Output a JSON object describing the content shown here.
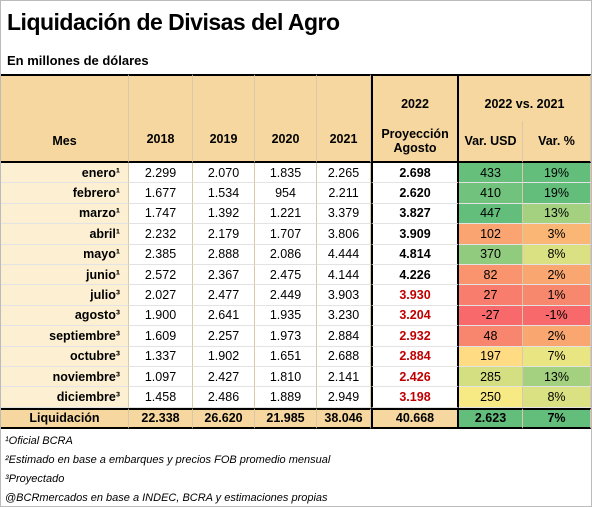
{
  "header": {
    "title": "Liquidación de Divisas del Agro",
    "subtitle": "En millones de dólares"
  },
  "table": {
    "columns": {
      "month": "Mes",
      "years": [
        "2018",
        "2019",
        "2020",
        "2021"
      ],
      "year_2022": "2022",
      "projection": "Proyección Agosto",
      "comparison": "2022 vs. 2021",
      "var_usd": "Var. USD",
      "var_pct": "Var. %"
    },
    "rows": [
      {
        "cells": [
          "enero¹",
          "2.299",
          "2.070",
          "1.835",
          "2.265",
          "2.698",
          "433",
          "19%"
        ],
        "projection_color": "#000000",
        "usd_color": "#66bf7b",
        "pct_color": "#63be7b"
      },
      {
        "cells": [
          "febrero¹",
          "1.677",
          "1.534",
          "954",
          "2.211",
          "2.620",
          "410",
          "19%"
        ],
        "projection_color": "#000000",
        "usd_color": "#70c27c",
        "pct_color": "#63be7b"
      },
      {
        "cells": [
          "marzo¹",
          "1.747",
          "1.392",
          "1.221",
          "3.379",
          "3.827",
          "447",
          "13%"
        ],
        "projection_color": "#000000",
        "usd_color": "#63be7b",
        "pct_color": "#a3d17f"
      },
      {
        "cells": [
          "abril¹",
          "2.232",
          "2.179",
          "1.707",
          "3.806",
          "3.909",
          "102",
          "3%"
        ],
        "projection_color": "#000000",
        "usd_color": "#f9a471",
        "pct_color": "#fab674"
      },
      {
        "cells": [
          "mayo¹",
          "2.385",
          "2.888",
          "2.086",
          "4.444",
          "4.814",
          "370",
          "8%"
        ],
        "projection_color": "#000000",
        "usd_color": "#91cb7e",
        "pct_color": "#dae182"
      },
      {
        "cells": [
          "junio¹",
          "2.572",
          "2.367",
          "2.475",
          "4.144",
          "4.226",
          "82",
          "2%"
        ],
        "projection_color": "#000000",
        "usd_color": "#f9946e",
        "pct_color": "#f9a670"
      },
      {
        "cells": [
          "julio³",
          "2.027",
          "2.477",
          "2.449",
          "3.903",
          "3.930",
          "27",
          "1%"
        ],
        "projection_color": "#c00000",
        "usd_color": "#f87d6c",
        "pct_color": "#f8886d"
      },
      {
        "cells": [
          "agosto³",
          "1.900",
          "2.641",
          "1.935",
          "3.230",
          "3.204",
          "-27",
          "-1%"
        ],
        "projection_color": "#c00000",
        "usd_color": "#f8696b",
        "pct_color": "#f8696b"
      },
      {
        "cells": [
          "septiembre³",
          "1.609",
          "2.257",
          "1.973",
          "2.884",
          "2.932",
          "48",
          "2%"
        ],
        "projection_color": "#c00000",
        "usd_color": "#f8856d",
        "pct_color": "#f9a670"
      },
      {
        "cells": [
          "octubre³",
          "1.337",
          "1.902",
          "1.651",
          "2.688",
          "2.884",
          "197",
          "7%"
        ],
        "projection_color": "#c00000",
        "usd_color": "#ffdb84",
        "pct_color": "#eae583"
      },
      {
        "cells": [
          "noviembre³",
          "1.097",
          "2.427",
          "1.810",
          "2.141",
          "2.426",
          "285",
          "13%"
        ],
        "projection_color": "#c00000",
        "usd_color": "#d4df82",
        "pct_color": "#a3d17f"
      },
      {
        "cells": [
          "diciembre³",
          "1.458",
          "2.486",
          "1.889",
          "2.949",
          "3.198",
          "250",
          "8%"
        ],
        "projection_color": "#c00000",
        "usd_color": "#f7e984",
        "pct_color": "#dae182"
      }
    ],
    "total": {
      "cells": [
        "Liquidación",
        "22.338",
        "26.620",
        "21.985",
        "38.046",
        "40.668",
        "2.623",
        "7%"
      ],
      "usd_color": "#63be7b",
      "pct_color": "#63be7b"
    }
  },
  "footnotes": [
    "¹Oficial BCRA",
    "²Estimado en base a embarques y precios FOB promedio mensual",
    "³Proyectado",
    "@BCRmercados en base a INDEC, BCRA y estimaciones propias"
  ]
}
